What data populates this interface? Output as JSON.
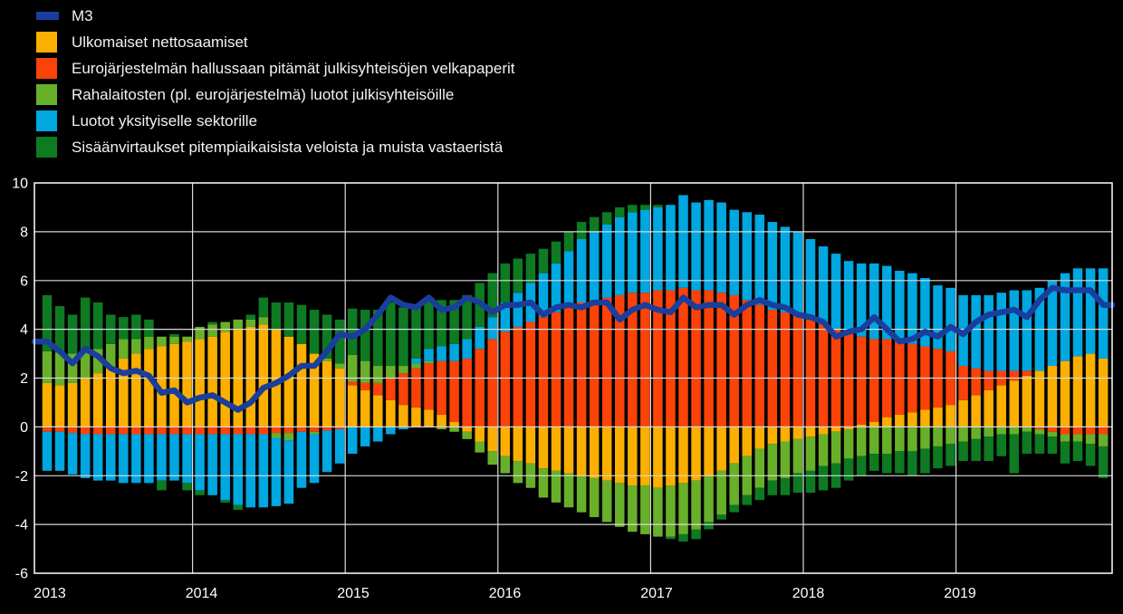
{
  "chart_data": {
    "type": "bar",
    "subtype": "stacked-bar-with-line",
    "title": "",
    "xlabel": "",
    "ylabel": "",
    "ylim": [
      -6,
      10
    ],
    "y_ticks": [
      10,
      8,
      6,
      4,
      2,
      0,
      -2,
      -4,
      -6
    ],
    "y_tick_labels": [
      "10",
      "8",
      "6",
      "4",
      "2",
      "0",
      "-2",
      "-4",
      "-6"
    ],
    "x_tick_labels": [
      "2013",
      "2014",
      "2015",
      "2016",
      "2017",
      "2018",
      "2019"
    ],
    "start_month": "2013-01",
    "end_month": "2019-12",
    "n_months": 84,
    "frequency": "monthly",
    "grid": true,
    "legend_position": "top-left",
    "background_color": "#000000",
    "grid_color": "#D9D9D9",
    "axis_color": "#FFFFFF",
    "tick_label_color": "#FFFFFF",
    "series": [
      {
        "name": "M3",
        "type": "line",
        "color": "#1A3E9E",
        "values": [
          3.5,
          3.1,
          2.6,
          3.2,
          2.9,
          2.4,
          2.2,
          2.3,
          2.1,
          1.4,
          1.5,
          1.0,
          1.2,
          1.3,
          1.0,
          0.7,
          1.0,
          1.6,
          1.8,
          2.1,
          2.5,
          2.5,
          3.1,
          3.8,
          3.7,
          4.0,
          4.6,
          5.3,
          5.0,
          4.9,
          5.3,
          4.8,
          4.9,
          5.3,
          5.1,
          4.7,
          5.0,
          5.0,
          5.1,
          4.6,
          4.9,
          5.0,
          4.9,
          5.1,
          5.1,
          4.4,
          4.8,
          5.0,
          4.8,
          4.7,
          5.3,
          4.9,
          5.0,
          5.0,
          4.6,
          5.0,
          5.2,
          5.0,
          4.9,
          4.6,
          4.5,
          4.3,
          3.7,
          3.9,
          4.0,
          4.5,
          4.0,
          3.5,
          3.6,
          3.9,
          3.7,
          4.1,
          3.8,
          4.3,
          4.6,
          4.7,
          4.8,
          4.5,
          5.2,
          5.7,
          5.6,
          5.6,
          5.6,
          5.0
        ]
      },
      {
        "name": "Ulkomaiset nettosaamiset",
        "type": "bar",
        "color": "#FBAF00",
        "values": [
          1.8,
          1.7,
          1.8,
          2.0,
          2.2,
          2.5,
          2.8,
          3.0,
          3.2,
          3.3,
          3.4,
          3.5,
          3.6,
          3.7,
          3.9,
          4.0,
          4.1,
          4.2,
          4.0,
          3.7,
          3.4,
          3.0,
          2.7,
          2.4,
          1.7,
          1.5,
          1.3,
          1.1,
          0.9,
          0.8,
          0.7,
          0.5,
          0.2,
          -0.2,
          -0.6,
          -1.0,
          -1.2,
          -1.4,
          -1.5,
          -1.7,
          -1.8,
          -1.9,
          -2.0,
          -2.1,
          -2.2,
          -2.3,
          -2.4,
          -2.4,
          -2.5,
          -2.4,
          -2.3,
          -2.2,
          -2.0,
          -1.8,
          -1.5,
          -1.2,
          -0.9,
          -0.7,
          -0.6,
          -0.5,
          -0.4,
          -0.3,
          -0.2,
          -0.1,
          0.1,
          0.2,
          0.4,
          0.5,
          0.6,
          0.7,
          0.8,
          0.9,
          1.1,
          1.3,
          1.5,
          1.7,
          1.9,
          2.1,
          2.3,
          2.5,
          2.7,
          2.9,
          3.0,
          2.8
        ]
      },
      {
        "name": "Eurojärjestelmän hallussaan pitämät julkisyhteisöjen velkapaperit",
        "type": "bar",
        "color": "#FB4208",
        "values": [
          -0.2,
          -0.2,
          -0.25,
          -0.3,
          -0.3,
          -0.3,
          -0.3,
          -0.3,
          -0.3,
          -0.3,
          -0.3,
          -0.3,
          -0.3,
          -0.3,
          -0.3,
          -0.3,
          -0.3,
          -0.3,
          -0.25,
          -0.25,
          -0.2,
          -0.2,
          -0.15,
          -0.1,
          0.15,
          0.3,
          0.5,
          0.9,
          1.3,
          1.6,
          1.9,
          2.2,
          2.5,
          2.8,
          3.2,
          3.6,
          3.9,
          4.1,
          4.3,
          4.5,
          4.7,
          4.9,
          5.1,
          5.2,
          5.3,
          5.4,
          5.5,
          5.5,
          5.6,
          5.6,
          5.7,
          5.6,
          5.6,
          5.5,
          5.4,
          5.2,
          5.0,
          4.8,
          4.7,
          4.6,
          4.4,
          4.2,
          4.0,
          3.8,
          3.6,
          3.4,
          3.2,
          3.0,
          2.8,
          2.6,
          2.4,
          2.2,
          1.4,
          1.1,
          0.8,
          0.6,
          0.4,
          0.2,
          -0.1,
          -0.2,
          -0.3,
          -0.3,
          -0.3,
          -0.3
        ]
      },
      {
        "name": "Rahalaitosten (pl. eurojärjestelmä) luotot julkisyhteisöille",
        "type": "bar",
        "color": "#69B02A",
        "values": [
          1.3,
          1.35,
          1.2,
          1.1,
          1.0,
          0.9,
          0.8,
          0.6,
          0.5,
          0.4,
          0.3,
          0.2,
          0.5,
          0.5,
          0.4,
          0.4,
          0.3,
          0.3,
          -0.2,
          -0.3,
          0.0,
          -0.1,
          0.1,
          0.2,
          1.1,
          0.9,
          0.7,
          0.5,
          0.3,
          0.2,
          0.1,
          -0.1,
          -0.2,
          -0.3,
          -0.45,
          -0.55,
          -0.7,
          -0.9,
          -1.0,
          -1.2,
          -1.3,
          -1.4,
          -1.5,
          -1.6,
          -1.7,
          -1.8,
          -1.9,
          -2.0,
          -2.0,
          -2.1,
          -2.1,
          -2.0,
          -1.9,
          -1.8,
          -1.7,
          -1.6,
          -1.6,
          -1.5,
          -1.5,
          -1.4,
          -1.4,
          -1.3,
          -1.3,
          -1.2,
          -1.2,
          -1.1,
          -1.1,
          -1.0,
          -1.0,
          -0.9,
          -0.8,
          -0.7,
          -0.6,
          -0.5,
          -0.4,
          -0.3,
          -0.3,
          -0.2,
          -0.2,
          -0.2,
          -0.3,
          -0.3,
          -0.4,
          -0.5
        ]
      },
      {
        "name": "Luotot yksityiselle sektorille",
        "type": "bar",
        "color": "#00A7E1",
        "values": [
          -1.6,
          -1.6,
          -1.7,
          -1.8,
          -1.9,
          -1.9,
          -2.0,
          -2.0,
          -2.0,
          -1.9,
          -1.9,
          -2.0,
          -2.3,
          -2.5,
          -2.7,
          -2.9,
          -3.0,
          -3.0,
          -2.8,
          -2.6,
          -2.3,
          -2.0,
          -1.7,
          -1.4,
          -1.1,
          -0.8,
          -0.6,
          -0.3,
          -0.1,
          0.2,
          0.5,
          0.6,
          0.7,
          0.8,
          0.9,
          0.9,
          1.2,
          1.4,
          1.6,
          1.8,
          2.0,
          2.3,
          2.6,
          2.8,
          3.0,
          3.2,
          3.3,
          3.4,
          3.4,
          3.5,
          3.8,
          3.6,
          3.7,
          3.7,
          3.5,
          3.6,
          3.7,
          3.6,
          3.5,
          3.4,
          3.3,
          3.2,
          3.1,
          3.0,
          3.0,
          3.1,
          3.0,
          2.9,
          2.9,
          2.8,
          2.6,
          2.6,
          2.9,
          3.0,
          3.1,
          3.2,
          3.3,
          3.3,
          3.4,
          3.5,
          3.6,
          3.6,
          3.5,
          3.7
        ]
      },
      {
        "name": "Sisäänvirtaukset pitempiaikaisista veloista ja muista vastaeristä",
        "type": "bar",
        "color": "#0E7A22",
        "values": [
          2.3,
          1.9,
          1.6,
          2.2,
          1.9,
          1.2,
          0.9,
          1.0,
          0.7,
          -0.4,
          0.1,
          -0.3,
          -0.2,
          0.1,
          -0.1,
          -0.2,
          0.2,
          0.8,
          1.1,
          1.4,
          1.6,
          1.8,
          1.8,
          1.8,
          1.9,
          2.1,
          2.3,
          2.6,
          2.4,
          2.2,
          2.1,
          1.9,
          1.8,
          1.8,
          1.8,
          1.8,
          1.6,
          1.4,
          1.2,
          1.0,
          0.9,
          0.8,
          0.7,
          0.6,
          0.5,
          0.4,
          0.3,
          0.2,
          0.1,
          -0.1,
          -0.3,
          -0.4,
          -0.3,
          -0.2,
          -0.3,
          -0.4,
          -0.5,
          -0.6,
          -0.7,
          -0.8,
          -0.9,
          -1.0,
          -1.0,
          -0.9,
          -0.8,
          -0.7,
          -0.8,
          -0.9,
          -1.0,
          -1.0,
          -0.9,
          -0.9,
          -0.8,
          -0.9,
          -1.0,
          -0.9,
          -1.6,
          -0.9,
          -0.8,
          -0.7,
          -0.9,
          -0.8,
          -0.9,
          -1.3
        ]
      }
    ]
  }
}
